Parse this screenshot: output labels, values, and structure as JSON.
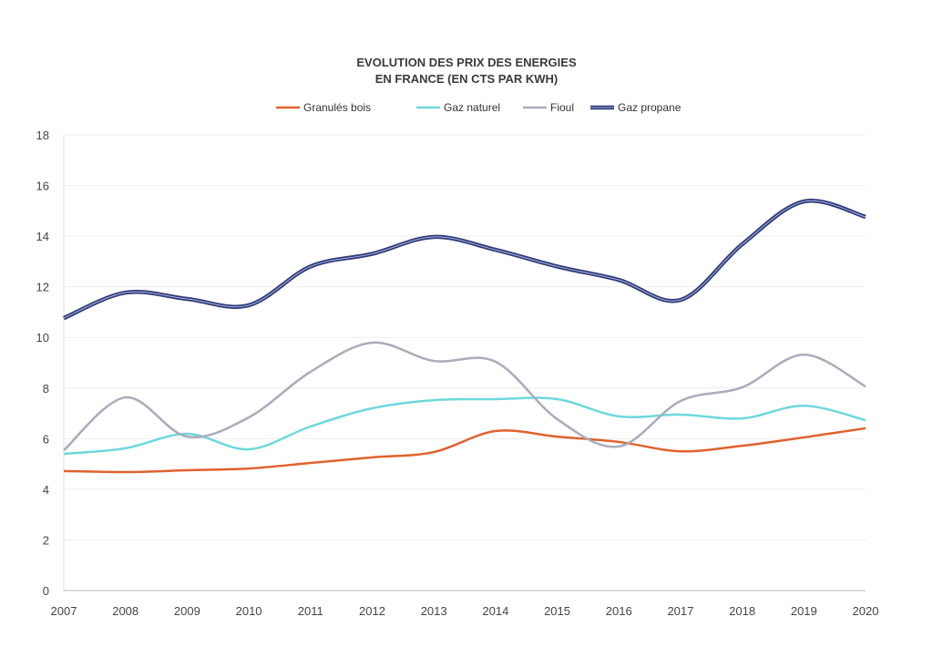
{
  "chart_data": {
    "type": "line",
    "title_line1": "EVOLUTION DES PRIX DES ENERGIES",
    "title_line2": "EN FRANCE (EN CTS PAR KWH)",
    "xlabel": "",
    "ylabel": "",
    "x": [
      "2007",
      "2008",
      "2009",
      "2010",
      "2011",
      "2012",
      "2013",
      "2014",
      "2015",
      "2016",
      "2017",
      "2018",
      "2019",
      "2020"
    ],
    "ylim": [
      0,
      18
    ],
    "yticks": [
      "0",
      "2",
      "4",
      "6",
      "8",
      "10",
      "12",
      "14",
      "16",
      "18"
    ],
    "grid": true,
    "legend_position": "top-center",
    "series": [
      {
        "name": "Granulés bois",
        "color": "#e0622c",
        "values": [
          4.72,
          4.68,
          4.75,
          4.82,
          5.04,
          5.26,
          5.47,
          6.3,
          6.08,
          5.87,
          5.5,
          5.72,
          6.05,
          6.41
        ]
      },
      {
        "name": "Gaz naturel",
        "color": "#6ed8dc",
        "values": [
          5.4,
          5.62,
          6.19,
          5.58,
          6.48,
          7.2,
          7.52,
          7.56,
          7.56,
          6.88,
          6.95,
          6.8,
          7.3,
          6.73
        ]
      },
      {
        "name": "Fioul",
        "color": "#a9acbb",
        "values": [
          5.54,
          7.63,
          6.08,
          6.84,
          8.64,
          9.79,
          9.07,
          9.04,
          6.77,
          5.69,
          7.49,
          8.03,
          9.32,
          8.06
        ]
      },
      {
        "name": "Gaz propane",
        "color": "#2f3a78",
        "values": [
          10.76,
          11.77,
          11.52,
          11.27,
          12.8,
          13.3,
          13.97,
          13.46,
          12.8,
          12.27,
          11.48,
          13.68,
          15.37,
          14.76
        ]
      }
    ]
  }
}
